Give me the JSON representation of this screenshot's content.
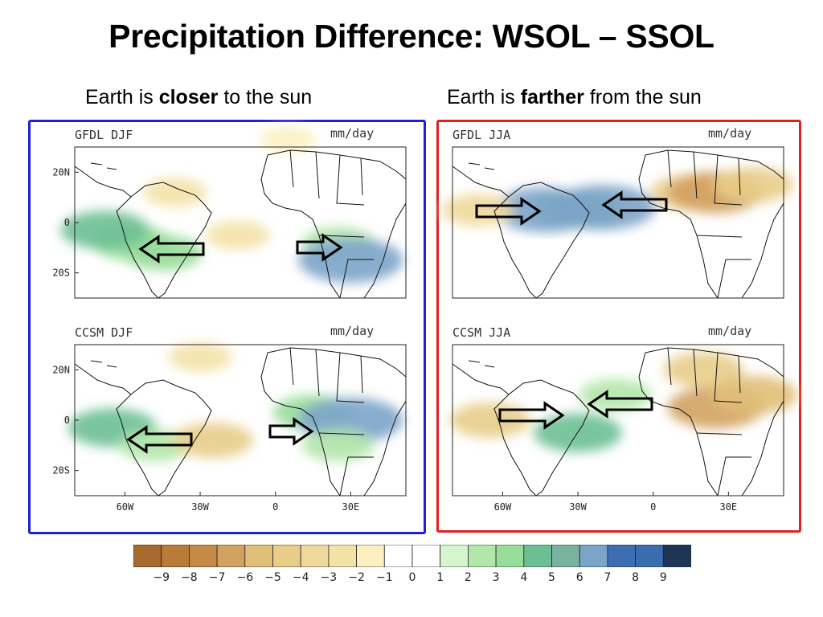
{
  "title": "Precipitation Difference: WSOL – SSOL",
  "subtitles": {
    "left": {
      "prefix": "Earth is ",
      "bold": "closer",
      "suffix": " to the sun"
    },
    "right": {
      "prefix": "Earth is ",
      "bold": "farther",
      "suffix": " from the sun"
    }
  },
  "colors": {
    "left_box": "#1f1fd6",
    "right_box": "#dd2020"
  },
  "chart_data": {
    "type": "heatmap",
    "units": "mm/day",
    "colorbar": {
      "levels": [
        "−9",
        "−8",
        "−7",
        "−6",
        "−5",
        "−4",
        "−3",
        "−2",
        "−1",
        "0",
        "1",
        "2",
        "3",
        "4",
        "5",
        "6",
        "7",
        "8",
        "9"
      ],
      "colors": [
        "#a8692e",
        "#b97a3a",
        "#c38a47",
        "#d1a160",
        "#e0bf78",
        "#e8cd89",
        "#efd99a",
        "#f3e2a7",
        "#fbf1c0",
        "#ffffff",
        "#ffffff",
        "#d5f5cf",
        "#b2e6aa",
        "#98dc99",
        "#6cbf93",
        "#7ab39d",
        "#7ca4c9",
        "#3d6db3",
        "#3a6dae",
        "#1e3556"
      ]
    },
    "panels": [
      {
        "id": "gfdl-djf",
        "label": "GFDL DJF",
        "units_label": "mm/day",
        "x_ticks": [],
        "y_ticks": [
          "20N",
          "0",
          "20S"
        ],
        "arrows": [
          {
            "direction": "left"
          },
          {
            "direction": "right"
          }
        ],
        "anomalies": [
          {
            "lon": -57,
            "lat": -8,
            "value": 4
          },
          {
            "lon": -45,
            "lat": -12,
            "value": 4
          },
          {
            "lon": -68,
            "lat": -3,
            "value": 5
          },
          {
            "lon": -15,
            "lat": -5,
            "value": -2
          },
          {
            "lon": 25,
            "lat": -8,
            "value": 3
          },
          {
            "lon": 30,
            "lat": -15,
            "value": 7
          },
          {
            "lon": -40,
            "lat": 12,
            "value": -2
          },
          {
            "lon": 5,
            "lat": 33,
            "value": -1
          }
        ]
      },
      {
        "id": "gfdl-jja",
        "label": "GFDL JJA",
        "units_label": "mm/day",
        "x_ticks": [],
        "y_ticks": [],
        "arrows": [
          {
            "direction": "right"
          },
          {
            "direction": "left"
          }
        ],
        "anomalies": [
          {
            "lon": -30,
            "lat": 5,
            "value": 5
          },
          {
            "lon": -43,
            "lat": 5,
            "value": 7
          },
          {
            "lon": -20,
            "lat": 6,
            "value": 7
          },
          {
            "lon": -70,
            "lat": 5,
            "value": -3
          },
          {
            "lon": 15,
            "lat": 12,
            "value": -4
          },
          {
            "lon": 25,
            "lat": 12,
            "value": -6
          },
          {
            "lon": 40,
            "lat": 15,
            "value": -4
          }
        ]
      },
      {
        "id": "ccsm-djf",
        "label": "CCSM DJF",
        "units_label": "mm/day",
        "x_ticks": [
          "60W",
          "30W",
          "0",
          "30E"
        ],
        "y_ticks": [
          "20N",
          "0",
          "20S"
        ],
        "arrows": [
          {
            "direction": "left"
          },
          {
            "direction": "right"
          }
        ],
        "anomalies": [
          {
            "lon": -65,
            "lat": -3,
            "value": 5
          },
          {
            "lon": -48,
            "lat": -10,
            "value": 3
          },
          {
            "lon": -25,
            "lat": -8,
            "value": -4
          },
          {
            "lon": 15,
            "lat": 3,
            "value": 4
          },
          {
            "lon": 30,
            "lat": 0,
            "value": 7
          },
          {
            "lon": 25,
            "lat": -10,
            "value": 3
          },
          {
            "lon": -30,
            "lat": 25,
            "value": -2
          }
        ]
      },
      {
        "id": "ccsm-jja",
        "label": "CCSM JJA",
        "units_label": "mm/day",
        "x_ticks": [
          "60W",
          "30W",
          "0",
          "30E"
        ],
        "y_ticks": [],
        "arrows": [
          {
            "direction": "right"
          },
          {
            "direction": "left"
          }
        ],
        "anomalies": [
          {
            "lon": -65,
            "lat": 0,
            "value": -4
          },
          {
            "lon": -30,
            "lat": -5,
            "value": 5
          },
          {
            "lon": -15,
            "lat": 10,
            "value": 3
          },
          {
            "lon": 20,
            "lat": 20,
            "value": -4
          },
          {
            "lon": 25,
            "lat": 5,
            "value": -6
          },
          {
            "lon": 40,
            "lat": 10,
            "value": -5
          }
        ]
      }
    ]
  }
}
